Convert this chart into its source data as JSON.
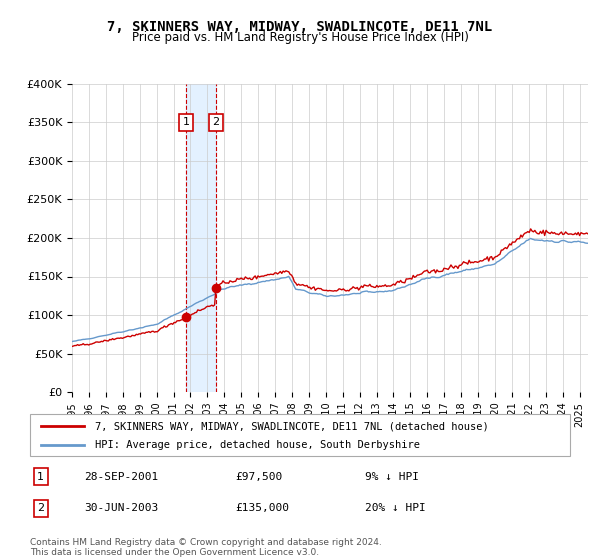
{
  "title": "7, SKINNERS WAY, MIDWAY, SWADLINCOTE, DE11 7NL",
  "subtitle": "Price paid vs. HM Land Registry's House Price Index (HPI)",
  "legend_line1": "7, SKINNERS WAY, MIDWAY, SWADLINCOTE, DE11 7NL (detached house)",
  "legend_line2": "HPI: Average price, detached house, South Derbyshire",
  "sale1_date": "28-SEP-2001",
  "sale1_price": 97500,
  "sale1_hpi_pct": "9% ↓ HPI",
  "sale2_date": "30-JUN-2003",
  "sale2_price": 135000,
  "sale2_hpi_pct": "20% ↓ HPI",
  "footer": "Contains HM Land Registry data © Crown copyright and database right 2024.\nThis data is licensed under the Open Government Licence v3.0.",
  "hpi_color": "#6699cc",
  "price_color": "#cc0000",
  "sale_marker_color": "#cc0000",
  "shade_color": "#ddeeff",
  "vline_color": "#cc0000",
  "ylim": [
    0,
    400000
  ],
  "xlim_start": 1995.0,
  "xlim_end": 2025.5,
  "sale1_year": 2001.74,
  "sale2_year": 2003.49
}
